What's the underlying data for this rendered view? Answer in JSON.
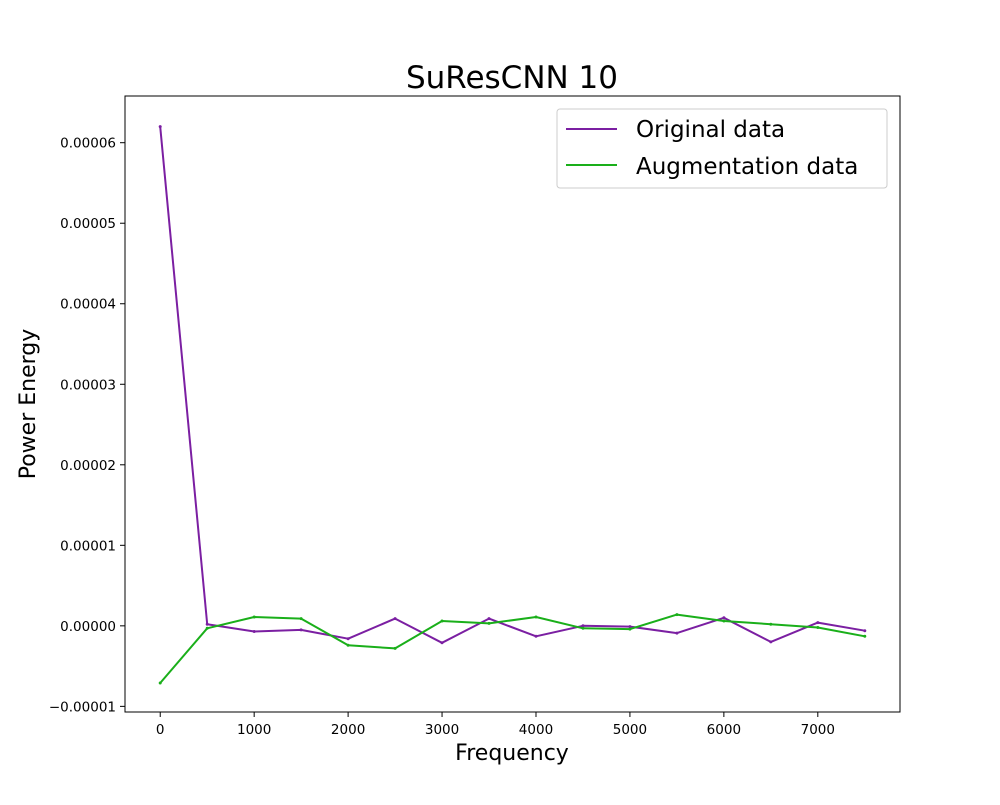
{
  "chart_data": {
    "type": "line",
    "title": "SuResCNN 10",
    "xlabel": "Frequency",
    "ylabel": "Power Energy",
    "xlim": [
      -375,
      7875
    ],
    "ylim": [
      -1.07e-05,
      6.58e-05
    ],
    "xticks": [
      0,
      1000,
      2000,
      3000,
      4000,
      5000,
      6000,
      7000
    ],
    "xtick_labels": [
      "0",
      "1000",
      "2000",
      "3000",
      "4000",
      "5000",
      "6000",
      "7000"
    ],
    "yticks": [
      -1e-05,
      0,
      1e-05,
      2e-05,
      3e-05,
      4e-05,
      5e-05,
      6e-05
    ],
    "ytick_labels": [
      "−0.00001",
      "0.00000",
      "0.00001",
      "0.00002",
      "0.00003",
      "0.00004",
      "0.00005",
      "0.00006"
    ],
    "grid": false,
    "legend_position": "upper right",
    "x": [
      0,
      500,
      1000,
      1500,
      2000,
      2500,
      3000,
      3500,
      4000,
      4500,
      5000,
      5500,
      6000,
      6500,
      7000,
      7500
    ],
    "series": [
      {
        "name": "Original data",
        "color": "#7b1fa2",
        "values": [
          6.2e-05,
          2e-07,
          -7e-07,
          -5e-07,
          -1.6e-06,
          9e-07,
          -2.1e-06,
          9e-07,
          -1.3e-06,
          0.0,
          -1e-07,
          -9e-07,
          1e-06,
          -2e-06,
          4e-07,
          -6e-07
        ]
      },
      {
        "name": "Augmentation data",
        "color": "#1aaf1a",
        "values": [
          -7.1e-06,
          -3e-07,
          1.1e-06,
          9e-07,
          -2.4e-06,
          -2.8e-06,
          6e-07,
          3e-07,
          1.1e-06,
          -3e-07,
          -4e-07,
          1.4e-06,
          6e-07,
          2e-07,
          -2e-07,
          -1.3e-06
        ]
      }
    ]
  }
}
